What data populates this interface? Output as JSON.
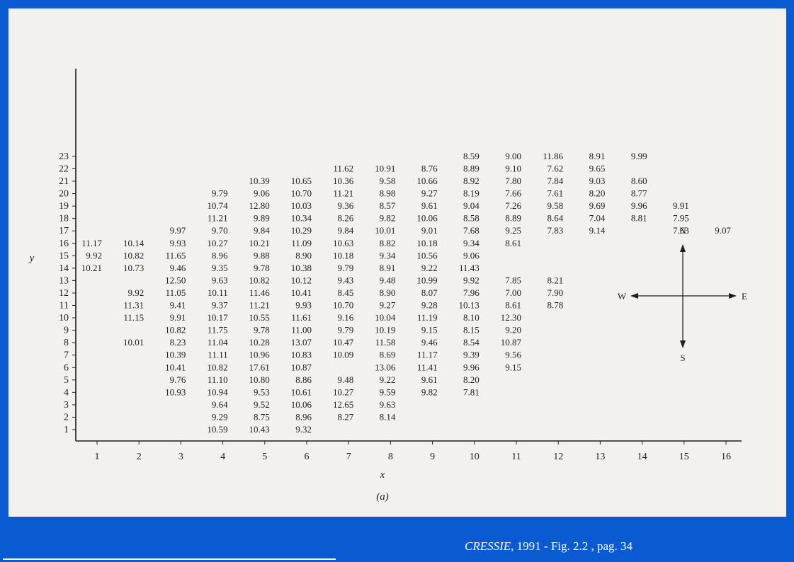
{
  "chart_data": {
    "type": "table",
    "title": "",
    "xlabel": "x",
    "ylabel": "y",
    "caption": "(a)",
    "x_ticks": [
      "1",
      "2",
      "3",
      "4",
      "5",
      "6",
      "7",
      "8",
      "9",
      "10",
      "11",
      "12",
      "13",
      "14",
      "15",
      "16"
    ],
    "y_ticks": [
      "1",
      "2",
      "3",
      "4",
      "5",
      "6",
      "7",
      "8",
      "9",
      "10",
      "11",
      "12",
      "13",
      "14",
      "15",
      "16",
      "17",
      "18",
      "19",
      "20",
      "21",
      "22",
      "23"
    ],
    "compass": {
      "north": "N",
      "south": "S",
      "west": "W",
      "east": "E"
    },
    "cells": [
      {
        "x": 10,
        "y": 23,
        "v": "8.59"
      },
      {
        "x": 11,
        "y": 23,
        "v": "9.00"
      },
      {
        "x": 12,
        "y": 23,
        "v": "11.86"
      },
      {
        "x": 13,
        "y": 23,
        "v": "8.91"
      },
      {
        "x": 14,
        "y": 23,
        "v": "9.99"
      },
      {
        "x": 7,
        "y": 22,
        "v": "11.62"
      },
      {
        "x": 8,
        "y": 22,
        "v": "10.91"
      },
      {
        "x": 9,
        "y": 22,
        "v": "8.76"
      },
      {
        "x": 10,
        "y": 22,
        "v": "8.89"
      },
      {
        "x": 11,
        "y": 22,
        "v": "9.10"
      },
      {
        "x": 12,
        "y": 22,
        "v": "7.62"
      },
      {
        "x": 13,
        "y": 22,
        "v": "9.65"
      },
      {
        "x": 5,
        "y": 21,
        "v": "10.39"
      },
      {
        "x": 6,
        "y": 21,
        "v": "10.65"
      },
      {
        "x": 7,
        "y": 21,
        "v": "10.36"
      },
      {
        "x": 8,
        "y": 21,
        "v": "9.58"
      },
      {
        "x": 9,
        "y": 21,
        "v": "10.66"
      },
      {
        "x": 10,
        "y": 21,
        "v": "8.92"
      },
      {
        "x": 11,
        "y": 21,
        "v": "7.80"
      },
      {
        "x": 12,
        "y": 21,
        "v": "7.84"
      },
      {
        "x": 13,
        "y": 21,
        "v": "9.03"
      },
      {
        "x": 14,
        "y": 21,
        "v": "8.60"
      },
      {
        "x": 4,
        "y": 20,
        "v": "9.79"
      },
      {
        "x": 5,
        "y": 20,
        "v": "9.06"
      },
      {
        "x": 6,
        "y": 20,
        "v": "10.70"
      },
      {
        "x": 7,
        "y": 20,
        "v": "11.21"
      },
      {
        "x": 8,
        "y": 20,
        "v": "8.98"
      },
      {
        "x": 9,
        "y": 20,
        "v": "9.27"
      },
      {
        "x": 10,
        "y": 20,
        "v": "8.19"
      },
      {
        "x": 11,
        "y": 20,
        "v": "7.66"
      },
      {
        "x": 12,
        "y": 20,
        "v": "7.61"
      },
      {
        "x": 13,
        "y": 20,
        "v": "8.20"
      },
      {
        "x": 14,
        "y": 20,
        "v": "8.77"
      },
      {
        "x": 4,
        "y": 19,
        "v": "10.74"
      },
      {
        "x": 5,
        "y": 19,
        "v": "12.80"
      },
      {
        "x": 6,
        "y": 19,
        "v": "10.03"
      },
      {
        "x": 7,
        "y": 19,
        "v": "9.36"
      },
      {
        "x": 8,
        "y": 19,
        "v": "8.57"
      },
      {
        "x": 9,
        "y": 19,
        "v": "9.61"
      },
      {
        "x": 10,
        "y": 19,
        "v": "9.04"
      },
      {
        "x": 11,
        "y": 19,
        "v": "7.26"
      },
      {
        "x": 12,
        "y": 19,
        "v": "9.58"
      },
      {
        "x": 13,
        "y": 19,
        "v": "9.69"
      },
      {
        "x": 14,
        "y": 19,
        "v": "9.96"
      },
      {
        "x": 15,
        "y": 19,
        "v": "9.91"
      },
      {
        "x": 4,
        "y": 18,
        "v": "11.21"
      },
      {
        "x": 5,
        "y": 18,
        "v": "9.89"
      },
      {
        "x": 6,
        "y": 18,
        "v": "10.34"
      },
      {
        "x": 7,
        "y": 18,
        "v": "8.26"
      },
      {
        "x": 8,
        "y": 18,
        "v": "9.82"
      },
      {
        "x": 9,
        "y": 18,
        "v": "10.06"
      },
      {
        "x": 10,
        "y": 18,
        "v": "8.58"
      },
      {
        "x": 11,
        "y": 18,
        "v": "8.89"
      },
      {
        "x": 12,
        "y": 18,
        "v": "8.64"
      },
      {
        "x": 13,
        "y": 18,
        "v": "7.04"
      },
      {
        "x": 14,
        "y": 18,
        "v": "8.81"
      },
      {
        "x": 15,
        "y": 18,
        "v": "7.95"
      },
      {
        "x": 3,
        "y": 17,
        "v": "9.97"
      },
      {
        "x": 4,
        "y": 17,
        "v": "9.70"
      },
      {
        "x": 5,
        "y": 17,
        "v": "9.84"
      },
      {
        "x": 6,
        "y": 17,
        "v": "10.29"
      },
      {
        "x": 7,
        "y": 17,
        "v": "9.84"
      },
      {
        "x": 8,
        "y": 17,
        "v": "10.01"
      },
      {
        "x": 9,
        "y": 17,
        "v": "9.01"
      },
      {
        "x": 10,
        "y": 17,
        "v": "7.68"
      },
      {
        "x": 11,
        "y": 17,
        "v": "9.25"
      },
      {
        "x": 12,
        "y": 17,
        "v": "7.83"
      },
      {
        "x": 13,
        "y": 17,
        "v": "9.14"
      },
      {
        "x": 15,
        "y": 17,
        "v": "7.63"
      },
      {
        "x": 16,
        "y": 17,
        "v": "9.07"
      },
      {
        "x": 1,
        "y": 16,
        "v": "11.17"
      },
      {
        "x": 2,
        "y": 16,
        "v": "10.14"
      },
      {
        "x": 3,
        "y": 16,
        "v": "9.93"
      },
      {
        "x": 4,
        "y": 16,
        "v": "10.27"
      },
      {
        "x": 5,
        "y": 16,
        "v": "10.21"
      },
      {
        "x": 6,
        "y": 16,
        "v": "11.09"
      },
      {
        "x": 7,
        "y": 16,
        "v": "10.63"
      },
      {
        "x": 8,
        "y": 16,
        "v": "8.82"
      },
      {
        "x": 9,
        "y": 16,
        "v": "10.18"
      },
      {
        "x": 10,
        "y": 16,
        "v": "9.34"
      },
      {
        "x": 11,
        "y": 16,
        "v": "8.61"
      },
      {
        "x": 1,
        "y": 15,
        "v": "9.92"
      },
      {
        "x": 2,
        "y": 15,
        "v": "10.82"
      },
      {
        "x": 3,
        "y": 15,
        "v": "11.65"
      },
      {
        "x": 4,
        "y": 15,
        "v": "8.96"
      },
      {
        "x": 5,
        "y": 15,
        "v": "9.88"
      },
      {
        "x": 6,
        "y": 15,
        "v": "8.90"
      },
      {
        "x": 7,
        "y": 15,
        "v": "10.18"
      },
      {
        "x": 8,
        "y": 15,
        "v": "9.34"
      },
      {
        "x": 9,
        "y": 15,
        "v": "10.56"
      },
      {
        "x": 10,
        "y": 15,
        "v": "9.06"
      },
      {
        "x": 1,
        "y": 14,
        "v": "10.21"
      },
      {
        "x": 2,
        "y": 14,
        "v": "10.73"
      },
      {
        "x": 3,
        "y": 14,
        "v": "9.46"
      },
      {
        "x": 4,
        "y": 14,
        "v": "9.35"
      },
      {
        "x": 5,
        "y": 14,
        "v": "9.78"
      },
      {
        "x": 6,
        "y": 14,
        "v": "10.38"
      },
      {
        "x": 7,
        "y": 14,
        "v": "9.79"
      },
      {
        "x": 8,
        "y": 14,
        "v": "8.91"
      },
      {
        "x": 9,
        "y": 14,
        "v": "9.22"
      },
      {
        "x": 10,
        "y": 14,
        "v": "11.43"
      },
      {
        "x": 3,
        "y": 13,
        "v": "12.50"
      },
      {
        "x": 4,
        "y": 13,
        "v": "9.63"
      },
      {
        "x": 5,
        "y": 13,
        "v": "10.82"
      },
      {
        "x": 6,
        "y": 13,
        "v": "10.12"
      },
      {
        "x": 7,
        "y": 13,
        "v": "9.43"
      },
      {
        "x": 8,
        "y": 13,
        "v": "9.48"
      },
      {
        "x": 9,
        "y": 13,
        "v": "10.99"
      },
      {
        "x": 10,
        "y": 13,
        "v": "9.92"
      },
      {
        "x": 11,
        "y": 13,
        "v": "7.85"
      },
      {
        "x": 12,
        "y": 13,
        "v": "8.21"
      },
      {
        "x": 2,
        "y": 12,
        "v": "9.92"
      },
      {
        "x": 3,
        "y": 12,
        "v": "11.05"
      },
      {
        "x": 4,
        "y": 12,
        "v": "10.11"
      },
      {
        "x": 5,
        "y": 12,
        "v": "11.46"
      },
      {
        "x": 6,
        "y": 12,
        "v": "10.41"
      },
      {
        "x": 7,
        "y": 12,
        "v": "8.45"
      },
      {
        "x": 8,
        "y": 12,
        "v": "8.90"
      },
      {
        "x": 9,
        "y": 12,
        "v": "8.07"
      },
      {
        "x": 10,
        "y": 12,
        "v": "7.96"
      },
      {
        "x": 11,
        "y": 12,
        "v": "7.00"
      },
      {
        "x": 12,
        "y": 12,
        "v": "7.90"
      },
      {
        "x": 2,
        "y": 11,
        "v": "11.31"
      },
      {
        "x": 3,
        "y": 11,
        "v": "9.41"
      },
      {
        "x": 4,
        "y": 11,
        "v": "9.37"
      },
      {
        "x": 5,
        "y": 11,
        "v": "11.21"
      },
      {
        "x": 6,
        "y": 11,
        "v": "9.93"
      },
      {
        "x": 7,
        "y": 11,
        "v": "10.70"
      },
      {
        "x": 8,
        "y": 11,
        "v": "9.27"
      },
      {
        "x": 9,
        "y": 11,
        "v": "9.28"
      },
      {
        "x": 10,
        "y": 11,
        "v": "10.13"
      },
      {
        "x": 11,
        "y": 11,
        "v": "8.61"
      },
      {
        "x": 12,
        "y": 11,
        "v": "8.78"
      },
      {
        "x": 2,
        "y": 10,
        "v": "11.15"
      },
      {
        "x": 3,
        "y": 10,
        "v": "9.91"
      },
      {
        "x": 4,
        "y": 10,
        "v": "10.17"
      },
      {
        "x": 5,
        "y": 10,
        "v": "10.55"
      },
      {
        "x": 6,
        "y": 10,
        "v": "11.61"
      },
      {
        "x": 7,
        "y": 10,
        "v": "9.16"
      },
      {
        "x": 8,
        "y": 10,
        "v": "10.04"
      },
      {
        "x": 9,
        "y": 10,
        "v": "11.19"
      },
      {
        "x": 10,
        "y": 10,
        "v": "8.10"
      },
      {
        "x": 11,
        "y": 10,
        "v": "12.30"
      },
      {
        "x": 3,
        "y": 9,
        "v": "10.82"
      },
      {
        "x": 4,
        "y": 9,
        "v": "11.75"
      },
      {
        "x": 5,
        "y": 9,
        "v": "9.78"
      },
      {
        "x": 6,
        "y": 9,
        "v": "11.00"
      },
      {
        "x": 7,
        "y": 9,
        "v": "9.79"
      },
      {
        "x": 8,
        "y": 9,
        "v": "10.19"
      },
      {
        "x": 9,
        "y": 9,
        "v": "9.15"
      },
      {
        "x": 10,
        "y": 9,
        "v": "8.15"
      },
      {
        "x": 11,
        "y": 9,
        "v": "9.20"
      },
      {
        "x": 2,
        "y": 8,
        "v": "10.01"
      },
      {
        "x": 3,
        "y": 8,
        "v": "8.23"
      },
      {
        "x": 4,
        "y": 8,
        "v": "11.04"
      },
      {
        "x": 5,
        "y": 8,
        "v": "10.28"
      },
      {
        "x": 6,
        "y": 8,
        "v": "13.07"
      },
      {
        "x": 7,
        "y": 8,
        "v": "10.47"
      },
      {
        "x": 8,
        "y": 8,
        "v": "11.58"
      },
      {
        "x": 9,
        "y": 8,
        "v": "9.46"
      },
      {
        "x": 10,
        "y": 8,
        "v": "8.54"
      },
      {
        "x": 11,
        "y": 8,
        "v": "10.87"
      },
      {
        "x": 3,
        "y": 7,
        "v": "10.39"
      },
      {
        "x": 4,
        "y": 7,
        "v": "11.11"
      },
      {
        "x": 5,
        "y": 7,
        "v": "10.96"
      },
      {
        "x": 6,
        "y": 7,
        "v": "10.83"
      },
      {
        "x": 7,
        "y": 7,
        "v": "10.09"
      },
      {
        "x": 8,
        "y": 7,
        "v": "8.69"
      },
      {
        "x": 9,
        "y": 7,
        "v": "11.17"
      },
      {
        "x": 10,
        "y": 7,
        "v": "9.39"
      },
      {
        "x": 11,
        "y": 7,
        "v": "9.56"
      },
      {
        "x": 3,
        "y": 6,
        "v": "10.41"
      },
      {
        "x": 4,
        "y": 6,
        "v": "10.82"
      },
      {
        "x": 5,
        "y": 6,
        "v": "17.61"
      },
      {
        "x": 6,
        "y": 6,
        "v": "10.87"
      },
      {
        "x": 8,
        "y": 6,
        "v": "13.06"
      },
      {
        "x": 9,
        "y": 6,
        "v": "11.41"
      },
      {
        "x": 10,
        "y": 6,
        "v": "9.96"
      },
      {
        "x": 11,
        "y": 6,
        "v": "9.15"
      },
      {
        "x": 3,
        "y": 5,
        "v": "9.76"
      },
      {
        "x": 4,
        "y": 5,
        "v": "11.10"
      },
      {
        "x": 5,
        "y": 5,
        "v": "10.80"
      },
      {
        "x": 6,
        "y": 5,
        "v": "8.86"
      },
      {
        "x": 7,
        "y": 5,
        "v": "9.48"
      },
      {
        "x": 8,
        "y": 5,
        "v": "9.22"
      },
      {
        "x": 9,
        "y": 5,
        "v": "9.61"
      },
      {
        "x": 10,
        "y": 5,
        "v": "8.20"
      },
      {
        "x": 3,
        "y": 4,
        "v": "10.93"
      },
      {
        "x": 4,
        "y": 4,
        "v": "10.94"
      },
      {
        "x": 5,
        "y": 4,
        "v": "9.53"
      },
      {
        "x": 6,
        "y": 4,
        "v": "10.61"
      },
      {
        "x": 7,
        "y": 4,
        "v": "10.27"
      },
      {
        "x": 8,
        "y": 4,
        "v": "9.59"
      },
      {
        "x": 9,
        "y": 4,
        "v": "9.82"
      },
      {
        "x": 10,
        "y": 4,
        "v": "7.81"
      },
      {
        "x": 4,
        "y": 3,
        "v": "9.64"
      },
      {
        "x": 5,
        "y": 3,
        "v": "9.52"
      },
      {
        "x": 6,
        "y": 3,
        "v": "10.06"
      },
      {
        "x": 7,
        "y": 3,
        "v": "12.65"
      },
      {
        "x": 8,
        "y": 3,
        "v": "9.63"
      },
      {
        "x": 4,
        "y": 2,
        "v": "9.29"
      },
      {
        "x": 5,
        "y": 2,
        "v": "8.75"
      },
      {
        "x": 6,
        "y": 2,
        "v": "8.96"
      },
      {
        "x": 7,
        "y": 2,
        "v": "8.27"
      },
      {
        "x": 8,
        "y": 2,
        "v": "8.14"
      },
      {
        "x": 4,
        "y": 1,
        "v": "10.59"
      },
      {
        "x": 5,
        "y": 1,
        "v": "10.43"
      },
      {
        "x": 6,
        "y": 1,
        "v": "9.32"
      }
    ]
  },
  "footer": {
    "author": "CRESSIE",
    "citation": ", 1991 - Fig. 2.2 , pag. 34"
  },
  "colors": {
    "background": "#0a5bd1",
    "paper": "#f2f1ee",
    "ink": "#1e1e1e",
    "footer_text": "#ffffff"
  }
}
